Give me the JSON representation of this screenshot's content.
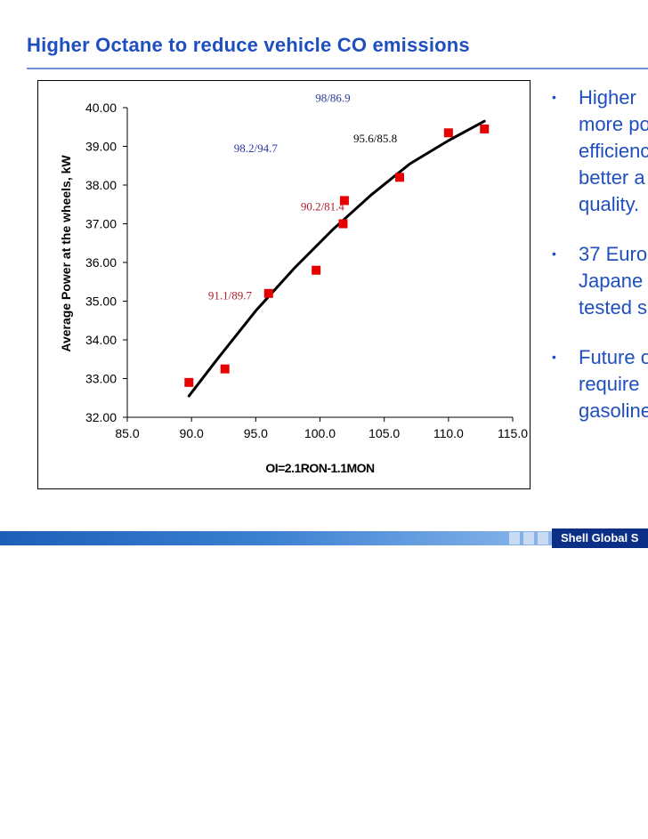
{
  "slide": {
    "title": "Higher Octane to reduce vehicle CO   emissions",
    "bullets": [
      {
        "lines": [
          "Higher",
          "more po",
          "efficienc",
          "better a",
          "quality."
        ]
      },
      {
        "lines": [
          "37 Euro",
          "Japane",
          "tested s"
        ]
      },
      {
        "lines": [
          "Future o",
          "require",
          "gasoline"
        ]
      }
    ],
    "footer_logo_text": "Shell Global S"
  },
  "colors": {
    "title": "#1f4fbf",
    "points": "#e60000",
    "trend": "#000000",
    "annotation_blue": "#2b3a9c",
    "annotation_red": "#b0202a"
  },
  "chart_data": {
    "type": "scatter",
    "title": "",
    "xlabel": "OI=2.1RON-1.1MON",
    "ylabel": "Average Power at the wheels, kW",
    "xlim": [
      85.0,
      115.0
    ],
    "ylim": [
      32.0,
      40.0
    ],
    "xticks": [
      "85.0",
      "90.0",
      "95.0",
      "100.0",
      "105.0",
      "110.0",
      "115.0"
    ],
    "yticks": [
      "32.00",
      "33.00",
      "34.00",
      "35.00",
      "36.00",
      "37.00",
      "38.00",
      "39.00",
      "40.00"
    ],
    "grid": false,
    "points": [
      {
        "x": 89.8,
        "y": 32.9
      },
      {
        "x": 92.6,
        "y": 33.25
      },
      {
        "x": 96.0,
        "y": 35.2
      },
      {
        "x": 99.7,
        "y": 35.8
      },
      {
        "x": 101.8,
        "y": 37.0
      },
      {
        "x": 101.9,
        "y": 37.6
      },
      {
        "x": 106.2,
        "y": 38.2
      },
      {
        "x": 110.0,
        "y": 39.35
      },
      {
        "x": 112.8,
        "y": 39.45
      }
    ],
    "trendline": [
      {
        "x": 89.8,
        "y": 32.55
      },
      {
        "x": 92.0,
        "y": 33.5
      },
      {
        "x": 95.0,
        "y": 34.75
      },
      {
        "x": 98.0,
        "y": 35.85
      },
      {
        "x": 101.0,
        "y": 36.85
      },
      {
        "x": 104.0,
        "y": 37.75
      },
      {
        "x": 107.0,
        "y": 38.55
      },
      {
        "x": 110.0,
        "y": 39.15
      },
      {
        "x": 112.8,
        "y": 39.65
      }
    ],
    "annotations": [
      {
        "text": "98/86.9",
        "x": 101.0,
        "y": 40.15,
        "color": "blue"
      },
      {
        "text": "95.6/85.8",
        "x": 104.3,
        "y": 39.1,
        "color": "black"
      },
      {
        "text": "98.2/94.7",
        "x": 95.0,
        "y": 38.85,
        "color": "blue"
      },
      {
        "text": "90.2/81.4",
        "x": 100.2,
        "y": 37.35,
        "color": "red"
      },
      {
        "text": "91.1/89.7",
        "x": 93.0,
        "y": 35.05,
        "color": "red"
      }
    ]
  }
}
